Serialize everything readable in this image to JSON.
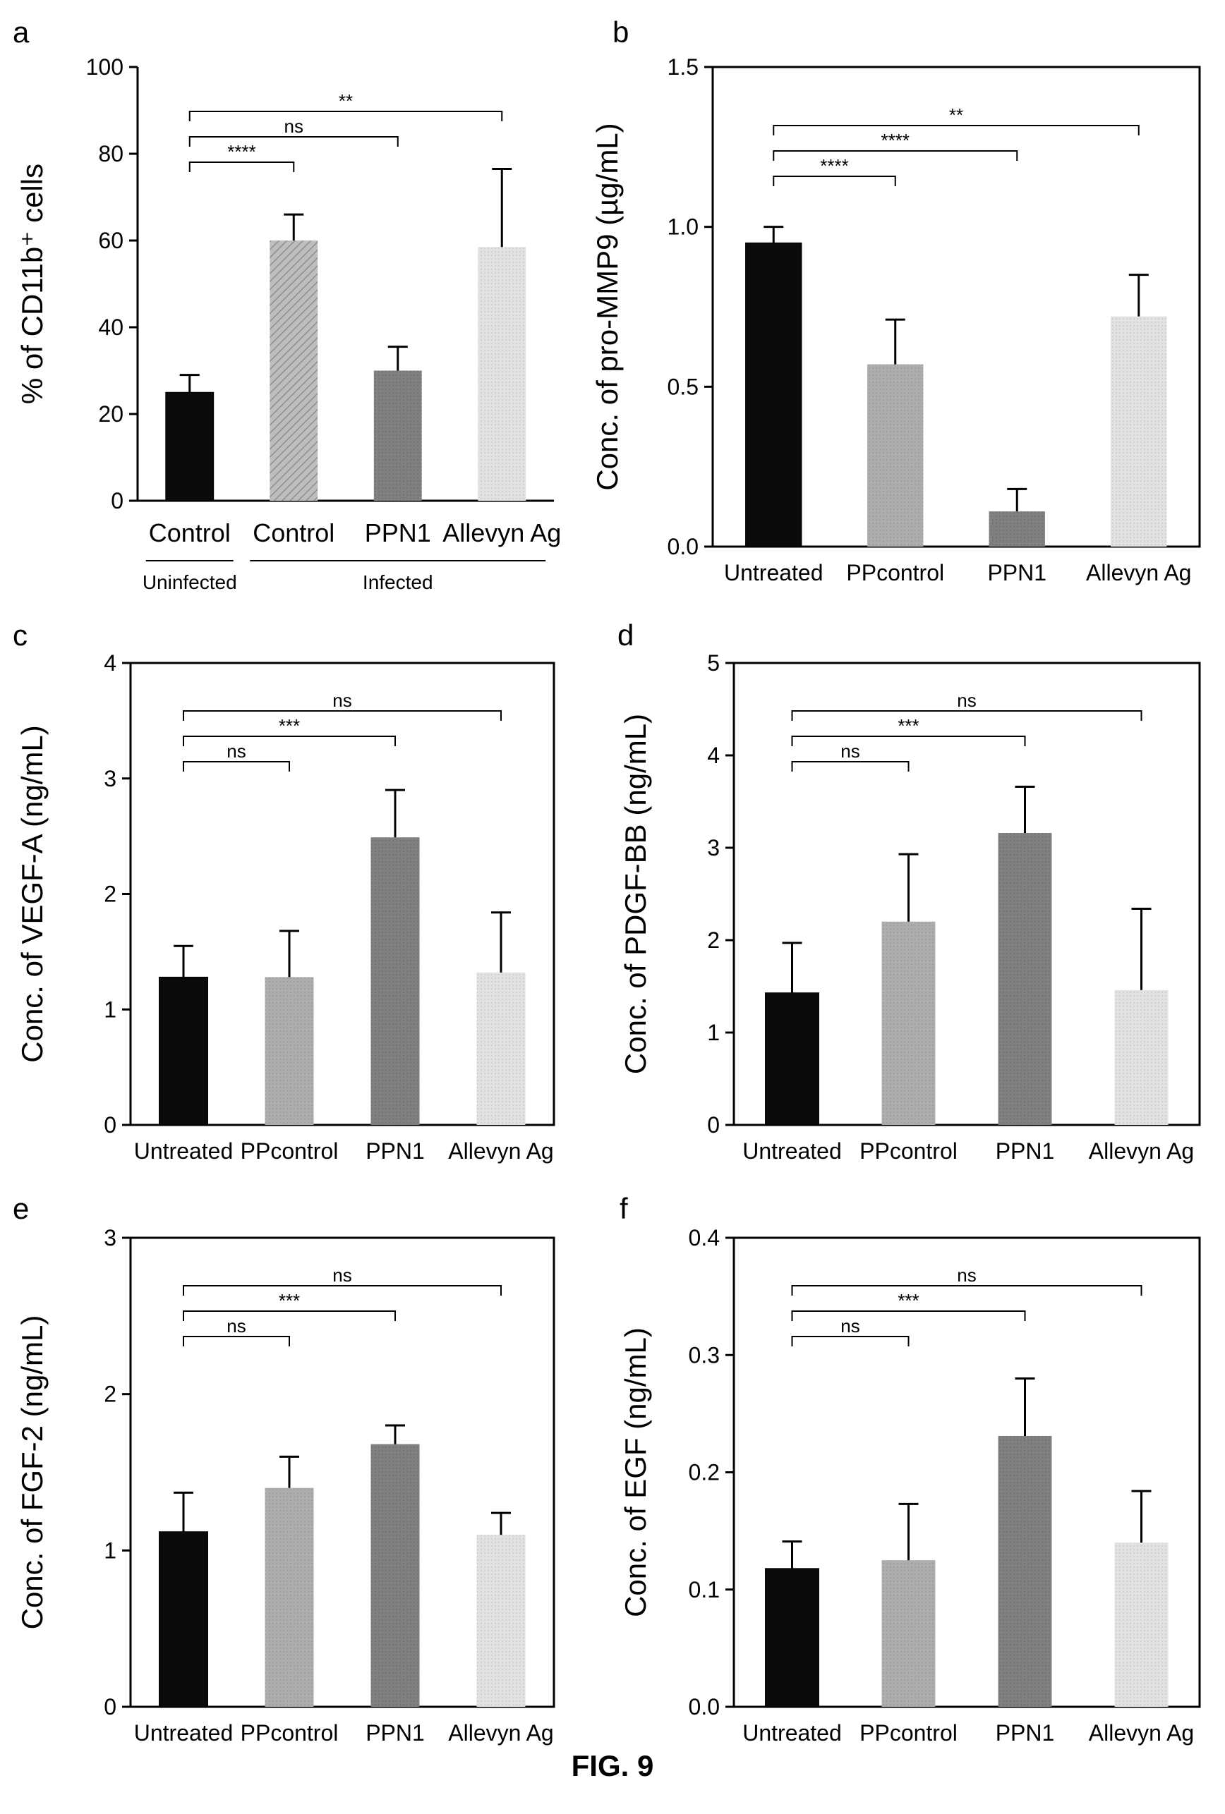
{
  "figure_caption": "FIG. 9",
  "colors": {
    "Untreated": "#0a0a0a",
    "PPcontrol": "#a8a8a8",
    "PPN1": "#7c7c7c",
    "Allevyn Ag": "#dcdcdc",
    "Control_infected": "#b0b0b0"
  },
  "chart_data": [
    {
      "panel": "a",
      "type": "bar",
      "ylabel": "% of CD11b⁺ cells",
      "ylim": [
        0,
        100
      ],
      "yticks": [
        "0",
        "20",
        "40",
        "60",
        "80",
        "100"
      ],
      "categories": [
        "Control",
        "Control",
        "PPN1",
        "Allevyn Ag"
      ],
      "values": [
        25,
        60,
        30,
        58.5
      ],
      "errors": [
        4,
        6,
        5.5,
        18
      ],
      "group_labels": [
        {
          "text": "Uninfected",
          "from": 0,
          "to": 0
        },
        {
          "text": "Infected",
          "from": 1,
          "to": 3
        }
      ],
      "significance": [
        {
          "from": 0,
          "to": 1,
          "label": "****"
        },
        {
          "from": 0,
          "to": 2,
          "label": "ns"
        },
        {
          "from": 0,
          "to": 3,
          "label": "**"
        }
      ]
    },
    {
      "panel": "b",
      "type": "bar",
      "ylabel": "Conc. of pro-MMP9 (µg/mL)",
      "ylim": [
        0,
        1.5
      ],
      "yticks": [
        "0.0",
        "0.5",
        "1.0",
        "1.5"
      ],
      "categories": [
        "Untreated",
        "PPcontrol",
        "PPN1",
        "Allevyn Ag"
      ],
      "values": [
        0.95,
        0.57,
        0.11,
        0.72
      ],
      "errors": [
        0.05,
        0.14,
        0.07,
        0.13
      ],
      "significance": [
        {
          "from": 0,
          "to": 1,
          "label": "****"
        },
        {
          "from": 0,
          "to": 2,
          "label": "****"
        },
        {
          "from": 0,
          "to": 3,
          "label": "**"
        }
      ]
    },
    {
      "panel": "c",
      "type": "bar",
      "ylabel": "Conc. of VEGF-A (ng/mL)",
      "ylim": [
        0,
        4
      ],
      "yticks": [
        "0",
        "1",
        "2",
        "3",
        "4"
      ],
      "categories": [
        "Untreated",
        "PPcontrol",
        "PPN1",
        "Allevyn Ag"
      ],
      "values": [
        1.28,
        1.28,
        2.49,
        1.32
      ],
      "errors": [
        0.27,
        0.4,
        0.41,
        0.52
      ],
      "significance": [
        {
          "from": 0,
          "to": 1,
          "label": "ns"
        },
        {
          "from": 0,
          "to": 2,
          "label": "***"
        },
        {
          "from": 0,
          "to": 3,
          "label": "ns"
        }
      ]
    },
    {
      "panel": "d",
      "type": "bar",
      "ylabel": "Conc. of PDGF-BB (ng/mL)",
      "ylim": [
        0,
        5
      ],
      "yticks": [
        "0",
        "1",
        "2",
        "3",
        "4",
        "5"
      ],
      "categories": [
        "Untreated",
        "PPcontrol",
        "PPN1",
        "Allevyn Ag"
      ],
      "values": [
        1.43,
        2.2,
        3.16,
        1.46
      ],
      "errors": [
        0.54,
        0.73,
        0.5,
        0.88
      ],
      "significance": [
        {
          "from": 0,
          "to": 1,
          "label": "ns"
        },
        {
          "from": 0,
          "to": 2,
          "label": "***"
        },
        {
          "from": 0,
          "to": 3,
          "label": "ns"
        }
      ]
    },
    {
      "panel": "e",
      "type": "bar",
      "ylabel": "Conc. of FGF-2 (ng/mL)",
      "ylim": [
        0,
        3
      ],
      "yticks": [
        "0",
        "1",
        "2",
        "3"
      ],
      "categories": [
        "Untreated",
        "PPcontrol",
        "PPN1",
        "Allevyn Ag"
      ],
      "values": [
        1.12,
        1.4,
        1.68,
        1.1
      ],
      "errors": [
        0.25,
        0.2,
        0.12,
        0.14
      ],
      "significance": [
        {
          "from": 0,
          "to": 1,
          "label": "ns"
        },
        {
          "from": 0,
          "to": 2,
          "label": "***"
        },
        {
          "from": 0,
          "to": 3,
          "label": "ns"
        }
      ]
    },
    {
      "panel": "f",
      "type": "bar",
      "ylabel": "Conc. of EGF (ng/mL)",
      "ylim": [
        0,
        0.4
      ],
      "yticks": [
        "0.0",
        "0.1",
        "0.2",
        "0.3",
        "0.4"
      ],
      "categories": [
        "Untreated",
        "PPcontrol",
        "PPN1",
        "Allevyn Ag"
      ],
      "values": [
        0.118,
        0.125,
        0.231,
        0.14
      ],
      "errors": [
        0.023,
        0.048,
        0.049,
        0.044
      ],
      "significance": [
        {
          "from": 0,
          "to": 1,
          "label": "ns"
        },
        {
          "from": 0,
          "to": 2,
          "label": "***"
        },
        {
          "from": 0,
          "to": 3,
          "label": "ns"
        }
      ]
    }
  ]
}
